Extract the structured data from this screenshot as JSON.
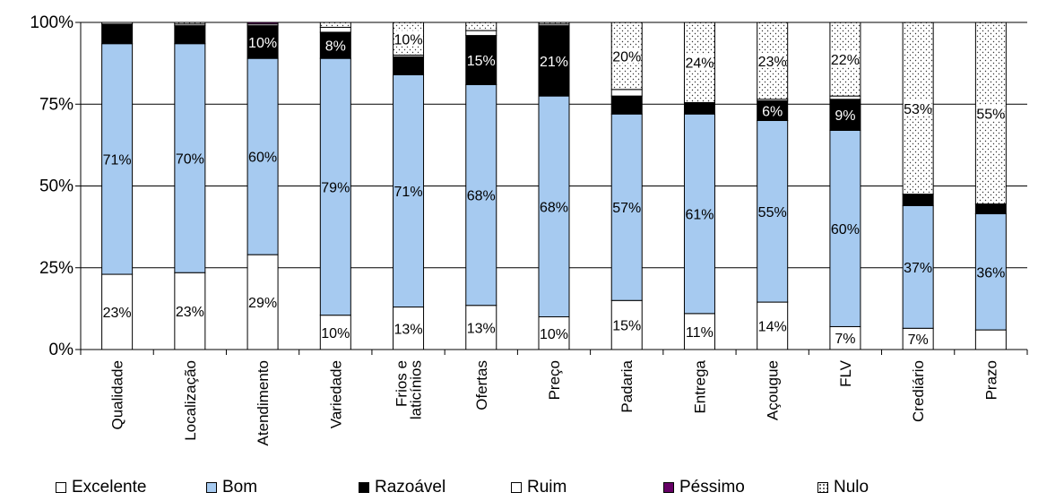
{
  "chart_data": {
    "type": "bar",
    "stacked": true,
    "percent": true,
    "categories": [
      "Qualidade",
      "Localização",
      "Atendimento",
      "Variedade",
      "Frios e laticínios",
      "Ofertas",
      "Preço",
      "Padaria",
      "Entrega",
      "Açougue",
      "FLV",
      "Crediário",
      "Prazo"
    ],
    "series": [
      {
        "name": "Excelente",
        "color": "#ffffff",
        "values": [
          23,
          23.5,
          29,
          10.5,
          13,
          13.5,
          10,
          15,
          11,
          14.5,
          7,
          6.5,
          6
        ]
      },
      {
        "name": "Bom",
        "color": "#a6caf0",
        "values": [
          70.5,
          70,
          60,
          78.5,
          71,
          67.5,
          67.5,
          57,
          61,
          55.5,
          60,
          37.5,
          35.5
        ]
      },
      {
        "name": "Razoável",
        "color": "#000000",
        "values": [
          6,
          5.5,
          10,
          8,
          5.5,
          15,
          21.5,
          5.5,
          3.5,
          6,
          9.5,
          3.5,
          3
        ]
      },
      {
        "name": "Ruim",
        "color": "#ffffff",
        "values": [
          0.5,
          0.5,
          0.5,
          1.5,
          0.5,
          1.5,
          0.5,
          2,
          0,
          0.5,
          1,
          0,
          0
        ]
      },
      {
        "name": "Péssimo",
        "color": "#660066",
        "values": [
          0,
          0,
          0.5,
          0,
          0,
          0,
          0,
          0,
          0,
          0,
          0,
          0,
          0
        ]
      },
      {
        "name": "Nulo",
        "color": "#ffffff",
        "pattern": "dots",
        "values": [
          0,
          0.5,
          0,
          1.5,
          10,
          2.5,
          0.5,
          20.5,
          24.5,
          23.5,
          22.5,
          52.5,
          55.5
        ]
      }
    ],
    "data_labels": [
      {
        "category": "Qualidade",
        "series": "Excelente",
        "text": "23%"
      },
      {
        "category": "Qualidade",
        "series": "Bom",
        "text": "71%"
      },
      {
        "category": "Localização",
        "series": "Excelente",
        "text": "23%"
      },
      {
        "category": "Localização",
        "series": "Bom",
        "text": "70%"
      },
      {
        "category": "Atendimento",
        "series": "Excelente",
        "text": "29%"
      },
      {
        "category": "Atendimento",
        "series": "Bom",
        "text": "60%"
      },
      {
        "category": "Atendimento",
        "series": "Razoável",
        "text": "10%"
      },
      {
        "category": "Variedade",
        "series": "Excelente",
        "text": "10%"
      },
      {
        "category": "Variedade",
        "series": "Bom",
        "text": "79%"
      },
      {
        "category": "Variedade",
        "series": "Razoável",
        "text": "8%"
      },
      {
        "category": "Frios e laticínios",
        "series": "Excelente",
        "text": "13%"
      },
      {
        "category": "Frios e laticínios",
        "series": "Bom",
        "text": "71%"
      },
      {
        "category": "Frios e laticínios",
        "series": "Nulo",
        "text": "10%"
      },
      {
        "category": "Ofertas",
        "series": "Excelente",
        "text": "13%"
      },
      {
        "category": "Ofertas",
        "series": "Bom",
        "text": "68%"
      },
      {
        "category": "Ofertas",
        "series": "Razoável",
        "text": "15%"
      },
      {
        "category": "Preço",
        "series": "Excelente",
        "text": "10%"
      },
      {
        "category": "Preço",
        "series": "Bom",
        "text": "68%"
      },
      {
        "category": "Preço",
        "series": "Razoável",
        "text": "21%"
      },
      {
        "category": "Padaria",
        "series": "Excelente",
        "text": "15%"
      },
      {
        "category": "Padaria",
        "series": "Bom",
        "text": "57%"
      },
      {
        "category": "Padaria",
        "series": "Nulo",
        "text": "20%"
      },
      {
        "category": "Entrega",
        "series": "Excelente",
        "text": "11%"
      },
      {
        "category": "Entrega",
        "series": "Bom",
        "text": "61%"
      },
      {
        "category": "Entrega",
        "series": "Nulo",
        "text": "24%"
      },
      {
        "category": "Açougue",
        "series": "Excelente",
        "text": "14%"
      },
      {
        "category": "Açougue",
        "series": "Bom",
        "text": "55%"
      },
      {
        "category": "Açougue",
        "series": "Razoável",
        "text": "6%"
      },
      {
        "category": "Açougue",
        "series": "Nulo",
        "text": "23%"
      },
      {
        "category": "FLV",
        "series": "Excelente",
        "text": "7%"
      },
      {
        "category": "FLV",
        "series": "Bom",
        "text": "60%"
      },
      {
        "category": "FLV",
        "series": "Razoável",
        "text": "9%"
      },
      {
        "category": "FLV",
        "series": "Nulo",
        "text": "22%"
      },
      {
        "category": "Crediário",
        "series": "Excelente",
        "text": "7%"
      },
      {
        "category": "Crediário",
        "series": "Bom",
        "text": "37%"
      },
      {
        "category": "Crediário",
        "series": "Nulo",
        "text": "53%"
      },
      {
        "category": "Prazo",
        "series": "Bom",
        "text": "36%"
      },
      {
        "category": "Prazo",
        "series": "Nulo",
        "text": "55%"
      }
    ],
    "y_ticks": [
      0,
      25,
      50,
      75,
      100
    ],
    "y_tick_labels": [
      "0%",
      "25%",
      "50%",
      "75%",
      "100%"
    ],
    "ylim": [
      0,
      100
    ],
    "grid": true,
    "legend_position": "bottom",
    "title": "",
    "xlabel": "",
    "ylabel": ""
  }
}
